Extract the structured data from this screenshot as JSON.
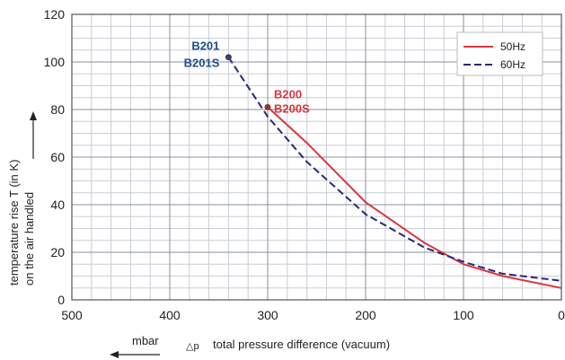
{
  "chart_data": {
    "type": "line",
    "xlabel": "total pressure difference (vacuum)",
    "xlabel_symbol": "△p",
    "x_unit": "mbar",
    "ylabel_line1": "temperature rise T (in K)",
    "ylabel_line2": "on the air handled",
    "xlim": [
      500,
      0
    ],
    "ylim": [
      0,
      120
    ],
    "x_reversed": true,
    "x_ticks": [
      500,
      400,
      300,
      200,
      100,
      0
    ],
    "y_ticks": [
      0,
      20,
      40,
      60,
      80,
      100,
      120
    ],
    "x_tick_labels": [
      "500",
      "400",
      "300",
      "200",
      "100",
      "0"
    ],
    "y_tick_labels": [
      "0",
      "20",
      "40",
      "60",
      "80",
      "100",
      "120"
    ],
    "grid": true,
    "legend_position": "top-right",
    "series": [
      {
        "name": "50Hz",
        "color": "#d9363e",
        "style": "solid",
        "x": [
          300,
          260,
          200,
          140,
          100,
          60,
          0
        ],
        "y": [
          81,
          66,
          41,
          24,
          15,
          10,
          5
        ]
      },
      {
        "name": "60Hz",
        "color": "#2a2878",
        "style": "dashed",
        "x": [
          340,
          300,
          260,
          200,
          140,
          100,
          60,
          0
        ],
        "y": [
          102,
          77,
          58,
          36,
          22,
          16,
          11,
          8
        ]
      }
    ],
    "annotations": [
      {
        "lines": [
          "B201",
          "B201S"
        ],
        "x": 340,
        "y": 102,
        "color": "#1f4e8c",
        "marker_color": "#3a3f6e"
      },
      {
        "lines": [
          "B200",
          "B200S"
        ],
        "x": 300,
        "y": 81,
        "color": "#d9363e",
        "marker_color": "#8b3a2f"
      }
    ]
  }
}
